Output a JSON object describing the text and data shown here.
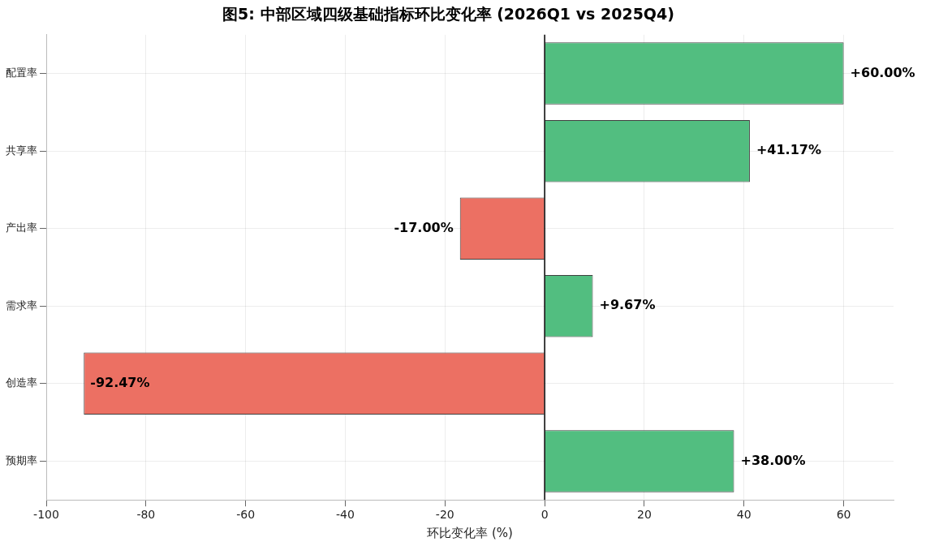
{
  "chart_data": {
    "type": "bar",
    "orientation": "horizontal",
    "title": "图5: 中部区域四级基础指标环比变化率 (2026Q1 vs 2025Q4)",
    "xlabel": "环比变化率 (%)",
    "categories": [
      "配置率",
      "共享率",
      "产出率",
      "需求率",
      "创造率",
      "预期率"
    ],
    "values": [
      60,
      41.17,
      -17,
      9.67,
      -92.47,
      38
    ],
    "colors": [
      "#52be80",
      "#52be80",
      "#ec7063",
      "#52be80",
      "#ec7063",
      "#52be80"
    ],
    "value_labels": [
      "+60.00%",
      "+41.17%",
      "-17.00%",
      "+9.67%",
      "-92.47%",
      "+38.00%"
    ],
    "xlim": [
      -100,
      70
    ],
    "xticks": [
      -100,
      -80,
      -60,
      -40,
      -20,
      0,
      20,
      40,
      60
    ],
    "ref_lines": [
      {
        "axis": "x",
        "value": 0,
        "color": "#000000"
      }
    ],
    "grid": true,
    "legend": false
  }
}
